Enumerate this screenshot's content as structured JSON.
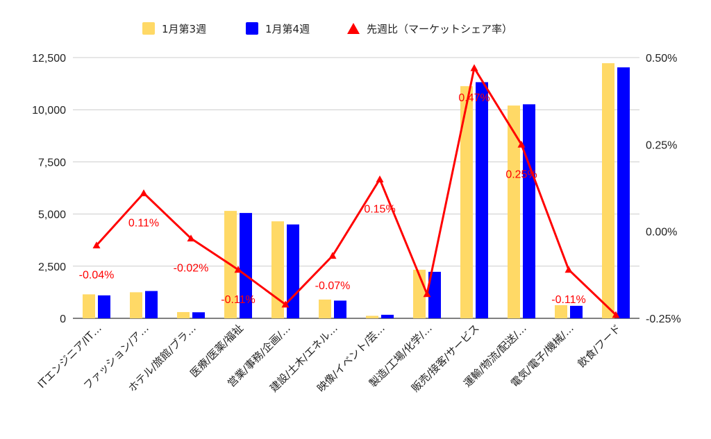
{
  "chart_data": {
    "type": "bar",
    "categories": [
      "ITエンジニア/IT…",
      "ファッション/ア…",
      "ホテル/旅館/ブラ…",
      "医療/医薬/福祉",
      "営業/事務/企画/…",
      "建設/土木/エネル…",
      "映像/イベント/芸…",
      "製造/工場/化学/…",
      "販売/接客/サービス",
      "運輸/物流/配送/…",
      "電気/電子/機械/…",
      "飲食/フード"
    ],
    "series": [
      {
        "name": "1月第3週",
        "axis": "left",
        "color": "#ffd966",
        "values": [
          1150,
          1250,
          300,
          5150,
          4650,
          900,
          120,
          2330,
          11130,
          10200,
          630,
          12230
        ]
      },
      {
        "name": "1月第4週",
        "axis": "left",
        "color": "#0000ff",
        "values": [
          1100,
          1310,
          290,
          5050,
          4500,
          850,
          170,
          2230,
          11320,
          10260,
          600,
          12030
        ]
      },
      {
        "name": "先週比（マーケットシェア率）",
        "type": "line",
        "axis": "right",
        "color": "#ff0000",
        "values": [
          -0.04,
          0.11,
          -0.02,
          -0.11,
          -0.21,
          -0.07,
          0.15,
          -0.18,
          0.47,
          0.25,
          -0.11,
          -0.24
        ],
        "labels": [
          "-0.04%",
          "0.11%",
          "-0.02%",
          "-0.11%",
          "",
          "-0.07%",
          "0.15%",
          "",
          "0.47%",
          "0.25%",
          "-0.11%",
          ""
        ]
      }
    ],
    "left_axis": {
      "ylim": [
        0,
        12500
      ],
      "ticks": [
        "0",
        "2,500",
        "5,000",
        "7,500",
        "10,000",
        "12,500"
      ]
    },
    "right_axis": {
      "ylim": [
        -0.25,
        0.5
      ],
      "ticks": [
        "-0.25%",
        "0.00%",
        "0.25%",
        "0.50%"
      ]
    },
    "grid": true,
    "legend_position": "top"
  }
}
